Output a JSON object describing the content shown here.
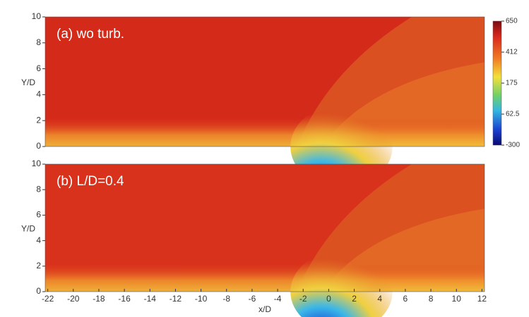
{
  "chart_data": [
    {
      "type": "contour",
      "annotation": "(a) wo turb.",
      "ylabel": "Y/D",
      "xlim": [
        -22.2,
        12.2
      ],
      "ylim": [
        0,
        10
      ],
      "yticks": [
        0,
        2,
        4,
        6,
        8,
        10
      ],
      "colorbar": {
        "ticks": [
          650,
          412,
          175,
          62.5,
          -300
        ]
      }
    },
    {
      "type": "contour",
      "annotation": "(b) L/D=0.4",
      "ylabel": "Y/D",
      "xlabel": "x/D",
      "xlim": [
        -22.2,
        12.2
      ],
      "ylim": [
        0,
        10
      ],
      "yticks": [
        0,
        2,
        4,
        6,
        8,
        10
      ],
      "xticks": [
        -22,
        -20,
        -18,
        -16,
        -14,
        -12,
        -10,
        -8,
        -6,
        -4,
        -2,
        0,
        2,
        4,
        6,
        8,
        10,
        12
      ]
    }
  ]
}
